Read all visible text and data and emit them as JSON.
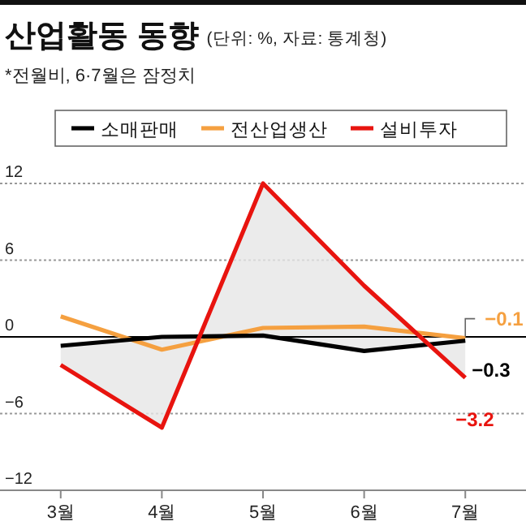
{
  "chart_data": {
    "type": "line",
    "title": "산업활동 동향",
    "subtitle": "(단위: %, 자료: 통계청)",
    "annotations": [
      "*전월비, 6·7월은 잠정치"
    ],
    "categories": [
      "3월",
      "4월",
      "5월",
      "6월",
      "7월"
    ],
    "series": [
      {
        "name": "소매판매",
        "color": "#000000",
        "values": [
          -0.7,
          0.0,
          0.1,
          -1.1,
          -0.3
        ],
        "value_labels": [
          null,
          null,
          null,
          null,
          "−0.3"
        ]
      },
      {
        "name": "전산업생산",
        "color": "#f5a040",
        "values": [
          1.6,
          -1.0,
          0.7,
          0.8,
          -0.1
        ],
        "value_labels": [
          null,
          null,
          null,
          null,
          "−0.1"
        ]
      },
      {
        "name": "설비투자",
        "color": "#e8140f",
        "values": [
          -2.2,
          -7.1,
          12.0,
          4.0,
          -3.2
        ],
        "value_labels": [
          null,
          null,
          null,
          null,
          "−3.2"
        ],
        "lower": [
          -0.7,
          0.0,
          0.1,
          -1.1,
          -0.3
        ],
        "upper": [
          -2.2,
          -7.1,
          12.0,
          4.0,
          -3.2
        ]
      }
    ],
    "ylim": [
      -12,
      12
    ],
    "yticks": [
      12,
      6,
      0,
      {
        "value": -6,
        "label": "−6"
      },
      {
        "value": -12,
        "label": "−12"
      }
    ],
    "grid": "y",
    "legend": "top",
    "marker": "none",
    "line_style": "solid",
    "ref_lines": [
      {
        "axis": "y",
        "value": 0,
        "color": "#000000"
      }
    ]
  }
}
